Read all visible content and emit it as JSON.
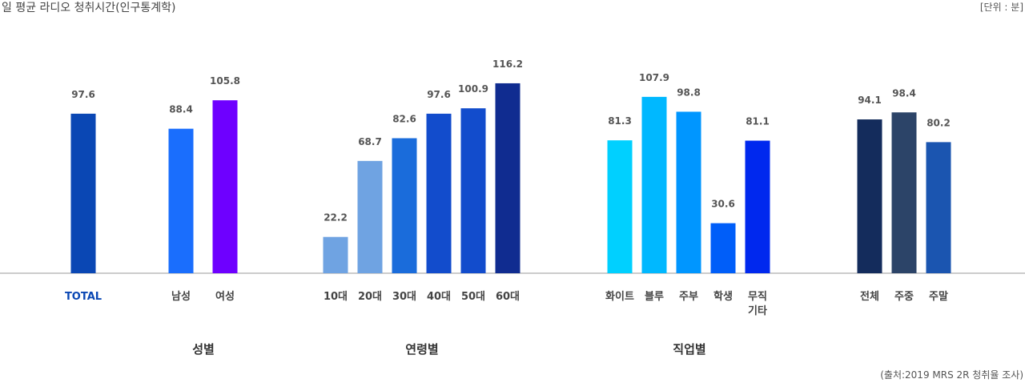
{
  "chart_data": {
    "type": "bar",
    "title": "일 평균 라디오 청취시간(인구통계학)",
    "unit_label": "[단위 : 분]",
    "source": "(출처:2019 MRS 2R 청취율 조사)",
    "ylim": [
      0,
      130
    ],
    "groups": [
      {
        "name": "",
        "bars": [
          {
            "label": "TOTAL",
            "value": 97.6,
            "color": "#0a47b4"
          }
        ]
      },
      {
        "name": "성별",
        "bars": [
          {
            "label": "남성",
            "value": 88.4,
            "color": "#1a6efd"
          },
          {
            "label": "여성",
            "value": 105.8,
            "color": "#6e00ff"
          }
        ]
      },
      {
        "name": "연령별",
        "bars": [
          {
            "label": "10대",
            "value": 22.2,
            "color": "#6fa3e2"
          },
          {
            "label": "20대",
            "value": 68.7,
            "color": "#6fa3e2"
          },
          {
            "label": "30대",
            "value": 82.6,
            "color": "#1a6cdb"
          },
          {
            "label": "40대",
            "value": 97.6,
            "color": "#124ccc"
          },
          {
            "label": "50대",
            "value": 100.9,
            "color": "#124ccc"
          },
          {
            "label": "60대",
            "value": 116.2,
            "color": "#102c90"
          }
        ]
      },
      {
        "name": "직업별",
        "bars": [
          {
            "label": "화이트",
            "value": 81.3,
            "color": "#00d0ff"
          },
          {
            "label": "블루",
            "value": 107.9,
            "color": "#00b8ff"
          },
          {
            "label": "주부",
            "value": 98.8,
            "color": "#0096ff"
          },
          {
            "label": "학생",
            "value": 30.6,
            "color": "#005ef9"
          },
          {
            "label": "무직\n기타",
            "value": 81.1,
            "color": "#0028ee"
          }
        ]
      },
      {
        "name": "",
        "bars": [
          {
            "label": "전체",
            "value": 94.1,
            "color": "#142c5c"
          },
          {
            "label": "주중",
            "value": 98.4,
            "color": "#2c4468"
          },
          {
            "label": "주말",
            "value": 80.2,
            "color": "#1b55b0"
          }
        ]
      }
    ]
  }
}
